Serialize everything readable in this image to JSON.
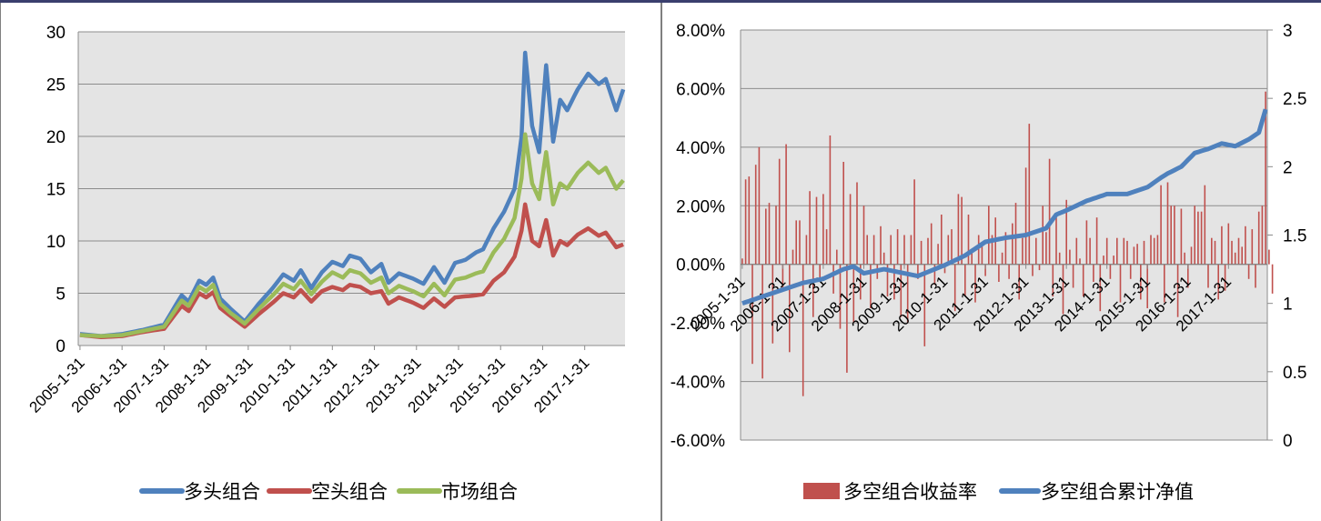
{
  "charts": {
    "left": {
      "type": "line",
      "ylim": [
        0,
        30
      ],
      "yticks": [
        "0",
        "5",
        "10",
        "15",
        "20",
        "25",
        "30"
      ],
      "xticks": [
        "2005-1-31",
        "2006-1-31",
        "2007-1-31",
        "2008-1-31",
        "2009-1-31",
        "2010-1-31",
        "2011-1-31",
        "2012-1-31",
        "2013-1-31",
        "2014-1-31",
        "2015-1-31",
        "2016-1-31",
        "2017-1-31"
      ],
      "legend": [
        "多头组合",
        "空头组合",
        "市场组合"
      ]
    },
    "right": {
      "type": "bar+line",
      "y1ticks": [
        "-6.00%",
        "-4.00%",
        "-2.00%",
        "0.00%",
        "2.00%",
        "4.00%",
        "6.00%",
        "8.00%"
      ],
      "y2ticks": [
        "0",
        "0.5",
        "1",
        "1.5",
        "2",
        "2.5",
        "3"
      ],
      "xticks": [
        "2005-1-31",
        "2006-1-31",
        "2007-1-31",
        "2008-1-31",
        "2009-1-31",
        "2010-1-31",
        "2011-1-31",
        "2012-1-31",
        "2013-1-31",
        "2014-1-31",
        "2015-1-31",
        "2016-1-31",
        "2017-1-31"
      ],
      "legend": [
        "多空组合收益率",
        "多空组合累计净值"
      ]
    }
  },
  "chart_data": [
    {
      "type": "line",
      "x_start": "2005-1-31",
      "x_end": "2017-12-31",
      "x_unit": "month",
      "ylim": [
        0,
        30
      ],
      "grid": true,
      "legend_position": "bottom",
      "xlabel": "",
      "ylabel": "",
      "series": [
        {
          "name": "多头组合",
          "color": "#4f81bd",
          "anchors": [
            [
              0,
              1.1
            ],
            [
              6,
              0.9
            ],
            [
              12,
              1.1
            ],
            [
              18,
              1.5
            ],
            [
              24,
              2.0
            ],
            [
              29,
              4.8
            ],
            [
              31,
              4.2
            ],
            [
              34,
              6.2
            ],
            [
              36,
              5.8
            ],
            [
              38,
              6.5
            ],
            [
              40,
              4.5
            ],
            [
              43,
              3.5
            ],
            [
              47,
              2.3
            ],
            [
              51,
              4.0
            ],
            [
              55,
              5.5
            ],
            [
              58,
              6.8
            ],
            [
              61,
              6.2
            ],
            [
              63,
              7.2
            ],
            [
              66,
              5.5
            ],
            [
              69,
              7.0
            ],
            [
              72,
              8.0
            ],
            [
              75,
              7.6
            ],
            [
              77,
              8.6
            ],
            [
              80,
              8.3
            ],
            [
              83,
              7.0
            ],
            [
              86,
              7.8
            ],
            [
              88,
              6.0
            ],
            [
              91,
              6.9
            ],
            [
              95,
              6.4
            ],
            [
              98,
              5.9
            ],
            [
              101,
              7.5
            ],
            [
              104,
              6.0
            ],
            [
              107,
              7.9
            ],
            [
              110,
              8.2
            ],
            [
              113,
              8.9
            ],
            [
              115,
              9.2
            ],
            [
              118,
              11.2
            ],
            [
              121,
              12.8
            ],
            [
              124,
              15.0
            ],
            [
              126,
              20.0
            ],
            [
              127,
              28.0
            ],
            [
              129,
              21.0
            ],
            [
              131,
              18.5
            ],
            [
              133,
              26.8
            ],
            [
              135,
              19.5
            ],
            [
              137,
              23.5
            ],
            [
              139,
              22.5
            ],
            [
              142,
              24.5
            ],
            [
              145,
              26.0
            ],
            [
              148,
              25.0
            ],
            [
              150,
              25.5
            ],
            [
              153,
              22.5
            ],
            [
              156,
              25.5
            ],
            [
              155,
              25.0
            ]
          ]
        },
        {
          "name": "空头组合",
          "color": "#c0504d",
          "anchors": [
            [
              0,
              1.0
            ],
            [
              6,
              0.8
            ],
            [
              12,
              0.9
            ],
            [
              18,
              1.3
            ],
            [
              24,
              1.6
            ],
            [
              29,
              3.8
            ],
            [
              31,
              3.3
            ],
            [
              34,
              5.0
            ],
            [
              36,
              4.6
            ],
            [
              38,
              5.1
            ],
            [
              40,
              3.6
            ],
            [
              43,
              2.8
            ],
            [
              47,
              1.8
            ],
            [
              51,
              3.0
            ],
            [
              55,
              4.1
            ],
            [
              58,
              5.0
            ],
            [
              61,
              4.6
            ],
            [
              63,
              5.3
            ],
            [
              66,
              4.2
            ],
            [
              69,
              5.2
            ],
            [
              72,
              5.6
            ],
            [
              75,
              5.3
            ],
            [
              77,
              5.8
            ],
            [
              80,
              5.6
            ],
            [
              83,
              5.0
            ],
            [
              86,
              5.2
            ],
            [
              88,
              4.0
            ],
            [
              91,
              4.6
            ],
            [
              95,
              4.1
            ],
            [
              98,
              3.6
            ],
            [
              101,
              4.5
            ],
            [
              104,
              3.7
            ],
            [
              107,
              4.6
            ],
            [
              110,
              4.7
            ],
            [
              113,
              4.8
            ],
            [
              115,
              4.9
            ],
            [
              118,
              6.2
            ],
            [
              121,
              7.0
            ],
            [
              124,
              8.5
            ],
            [
              126,
              11.0
            ],
            [
              127,
              13.5
            ],
            [
              129,
              10.0
            ],
            [
              131,
              9.5
            ],
            [
              133,
              12.0
            ],
            [
              135,
              8.6
            ],
            [
              137,
              10.0
            ],
            [
              139,
              9.6
            ],
            [
              142,
              10.6
            ],
            [
              145,
              11.2
            ],
            [
              148,
              10.5
            ],
            [
              150,
              10.8
            ],
            [
              153,
              9.4
            ],
            [
              156,
              9.8
            ]
          ]
        },
        {
          "name": "市场组合",
          "color": "#9bbb59",
          "anchors": [
            [
              0,
              1.0
            ],
            [
              6,
              0.9
            ],
            [
              12,
              1.0
            ],
            [
              18,
              1.4
            ],
            [
              24,
              1.8
            ],
            [
              29,
              4.3
            ],
            [
              31,
              3.8
            ],
            [
              34,
              5.6
            ],
            [
              36,
              5.2
            ],
            [
              38,
              5.8
            ],
            [
              40,
              4.0
            ],
            [
              43,
              3.1
            ],
            [
              47,
              2.1
            ],
            [
              51,
              3.5
            ],
            [
              55,
              4.8
            ],
            [
              58,
              5.9
            ],
            [
              61,
              5.4
            ],
            [
              63,
              6.2
            ],
            [
              66,
              4.9
            ],
            [
              69,
              6.1
            ],
            [
              72,
              7.0
            ],
            [
              75,
              6.5
            ],
            [
              77,
              7.2
            ],
            [
              80,
              6.9
            ],
            [
              83,
              6.0
            ],
            [
              86,
              6.5
            ],
            [
              88,
              5.0
            ],
            [
              91,
              5.7
            ],
            [
              95,
              5.2
            ],
            [
              98,
              4.7
            ],
            [
              101,
              5.9
            ],
            [
              104,
              4.8
            ],
            [
              107,
              6.3
            ],
            [
              110,
              6.5
            ],
            [
              113,
              6.9
            ],
            [
              115,
              7.1
            ],
            [
              118,
              8.9
            ],
            [
              121,
              10.2
            ],
            [
              124,
              12.2
            ],
            [
              126,
              16.0
            ],
            [
              127,
              20.2
            ],
            [
              129,
              15.5
            ],
            [
              131,
              14.0
            ],
            [
              133,
              18.5
            ],
            [
              135,
              13.5
            ],
            [
              137,
              15.5
            ],
            [
              139,
              15.0
            ],
            [
              142,
              16.5
            ],
            [
              145,
              17.5
            ],
            [
              148,
              16.5
            ],
            [
              150,
              17.0
            ],
            [
              153,
              15.0
            ],
            [
              156,
              16.2
            ]
          ]
        }
      ]
    },
    {
      "type": "bar+line",
      "x_start": "2005-1-31",
      "x_end": "2017-12-31",
      "x_unit": "month",
      "grid": true,
      "legend_position": "bottom",
      "y1lim": [
        -0.06,
        0.08
      ],
      "y2lim": [
        0,
        3
      ],
      "series": [
        {
          "name": "多空组合收益率",
          "kind": "bar",
          "axis": "left",
          "color": "#c0504d",
          "values": [
            0.002,
            0.029,
            0.03,
            -0.034,
            0.034,
            0.04,
            -0.039,
            0.019,
            0.021,
            -0.027,
            0.02,
            0.036,
            -0.008,
            0.041,
            -0.03,
            0.005,
            0.015,
            0.015,
            -0.045,
            0.01,
            0.025,
            -0.018,
            0.023,
            -0.006,
            0.024,
            0.012,
            0.044,
            -0.01,
            0.005,
            -0.022,
            0.035,
            -0.037,
            0.024,
            -0.02,
            0.028,
            -0.012,
            0.02,
            0.01,
            -0.015,
            0.01,
            -0.005,
            0.013,
            0.004,
            -0.011,
            0.01,
            -0.012,
            0.012,
            -0.018,
            0.01,
            -0.02,
            0.01,
            0.029,
            -0.005,
            0.008,
            -0.028,
            0.009,
            0.014,
            -0.007,
            0.007,
            0.017,
            -0.003,
            0.01,
            0.012,
            -0.016,
            0.024,
            0.023,
            -0.011,
            0.017,
            0.004,
            -0.013,
            0.01,
            0.007,
            -0.004,
            0.02,
            0.01,
            0.016,
            -0.006,
            0.004,
            0.011,
            -0.005,
            0.014,
            0.021,
            -0.012,
            0.009,
            0.033,
            0.048,
            -0.004,
            0.009,
            -0.002,
            0.02,
            0.011,
            0.036,
            -0.011,
            0.016,
            0.004,
            -0.017,
            0.022,
            0.005,
            -0.008,
            0.009,
            0.002,
            -0.011,
            0.015,
            0.009,
            -0.006,
            0.016,
            -0.016,
            0.003,
            0.009,
            -0.005,
            0.003,
            0.009,
            -0.013,
            0.009,
            0.008,
            -0.005,
            0.006,
            0.007,
            -0.012,
            0.008,
            -0.015,
            0.01,
            0.009,
            0.01,
            0.027,
            -0.013,
            0.028,
            0.02,
            0.02,
            -0.018,
            0.019,
            0.004,
            -0.008,
            0.006,
            0.02,
            0.018,
            0.018,
            0.027,
            -0.008,
            0.009,
            0.008,
            -0.012,
            0.013,
            -0.009,
            0.014,
            0.008,
            0.004,
            0.009,
            0.006,
            0.013,
            -0.005,
            0.012,
            -0.008,
            0.018,
            0.02,
            0.059,
            0.005,
            -0.01
          ]
        },
        {
          "name": "多空组合累计净值",
          "kind": "line",
          "axis": "right",
          "color": "#4f81bd",
          "anchors": [
            [
              0,
              1.0
            ],
            [
              6,
              1.05
            ],
            [
              12,
              1.1
            ],
            [
              18,
              1.15
            ],
            [
              24,
              1.18
            ],
            [
              30,
              1.25
            ],
            [
              33,
              1.27
            ],
            [
              36,
              1.22
            ],
            [
              42,
              1.25
            ],
            [
              48,
              1.22
            ],
            [
              52,
              1.2
            ],
            [
              60,
              1.28
            ],
            [
              66,
              1.35
            ],
            [
              72,
              1.45
            ],
            [
              78,
              1.48
            ],
            [
              84,
              1.5
            ],
            [
              90,
              1.55
            ],
            [
              93,
              1.65
            ],
            [
              96,
              1.68
            ],
            [
              102,
              1.75
            ],
            [
              108,
              1.8
            ],
            [
              114,
              1.8
            ],
            [
              120,
              1.85
            ],
            [
              124,
              1.92
            ],
            [
              126,
              1.95
            ],
            [
              130,
              2.0
            ],
            [
              134,
              2.1
            ],
            [
              138,
              2.13
            ],
            [
              142,
              2.17
            ],
            [
              146,
              2.15
            ],
            [
              150,
              2.2
            ],
            [
              153,
              2.25
            ],
            [
              155,
              2.42
            ],
            [
              156,
              2.4
            ]
          ]
        }
      ]
    }
  ]
}
